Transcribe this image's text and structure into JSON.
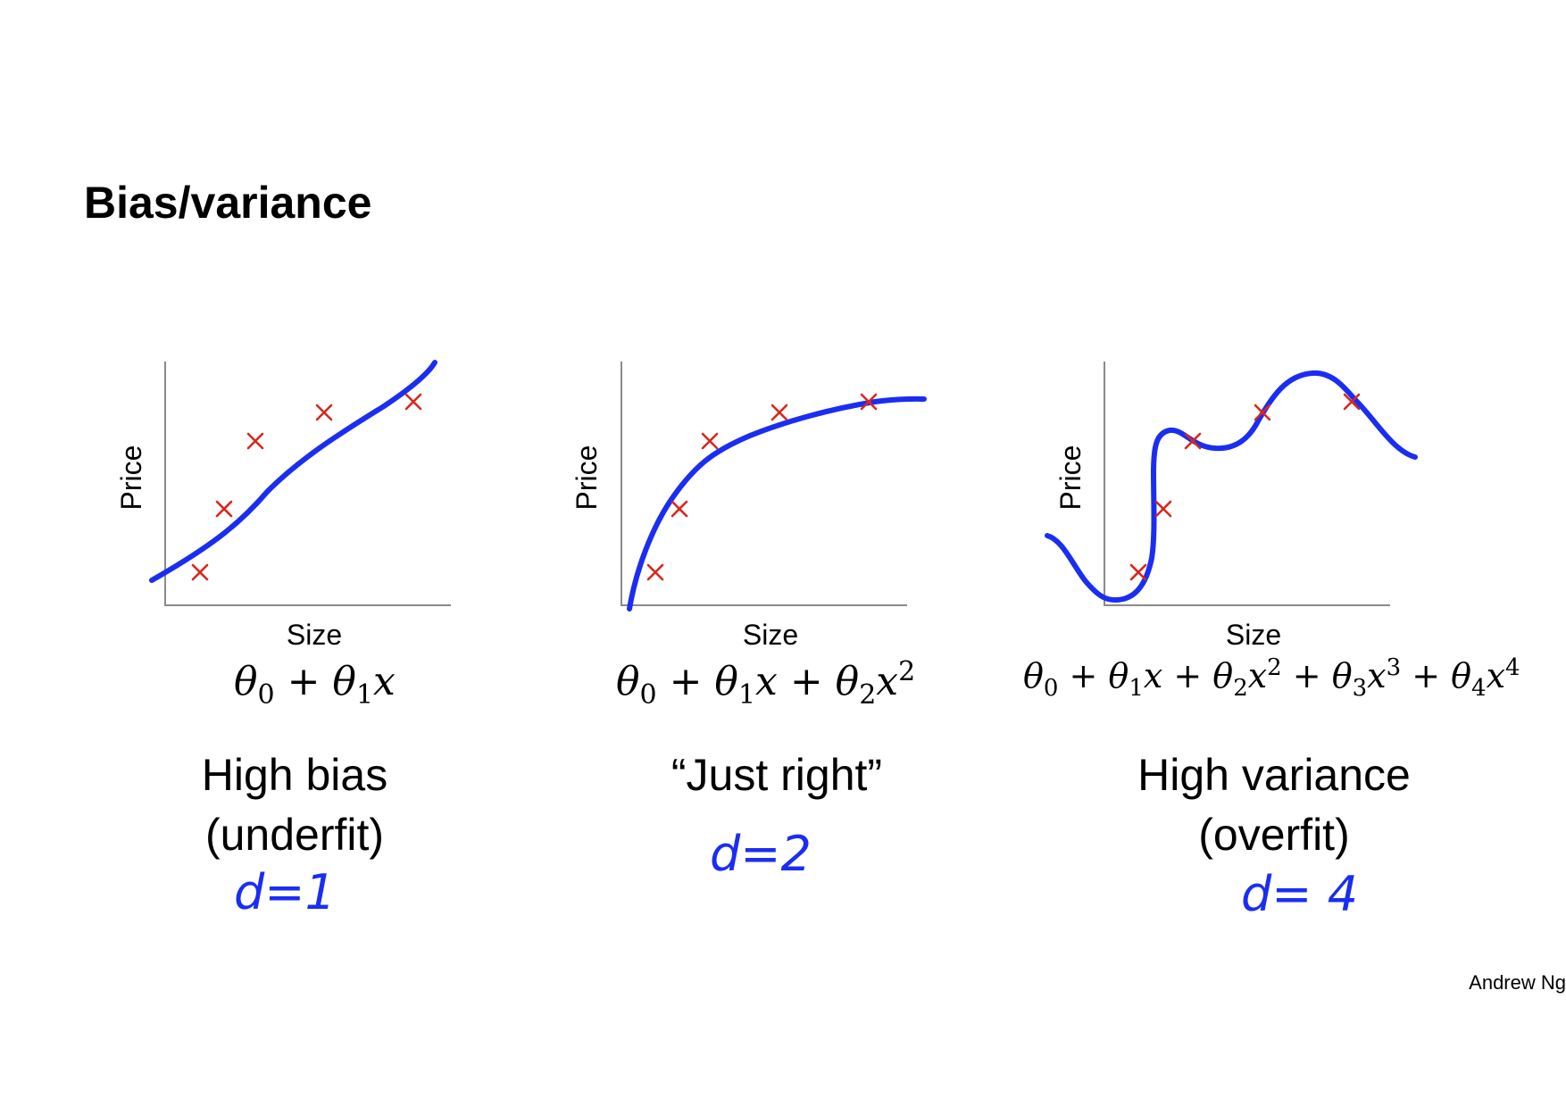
{
  "slide": {
    "title": "Bias/variance",
    "author": "Andrew Ng"
  },
  "panels": [
    {
      "id": "high-bias",
      "ylabel": "Price",
      "xlabel": "Size",
      "formula": "θ0 + θ1x",
      "caption_line1": "High bias",
      "caption_line2": "(underfit)",
      "handwritten": "d=1"
    },
    {
      "id": "just-right",
      "ylabel": "Price",
      "xlabel": "Size",
      "formula": "θ0 + θ1x + θ2x^2",
      "caption_line1": "“Just right”",
      "caption_line2": "",
      "handwritten": "d=2"
    },
    {
      "id": "high-variance",
      "ylabel": "Price",
      "xlabel": "Size",
      "formula": "θ0 + θ1x + θ2x^2 + θ3x^3 + θ4x^4",
      "caption_line1": "High variance",
      "caption_line2": "(overfit)",
      "handwritten": "d= 4"
    }
  ],
  "colors": {
    "curve": "#1a2ef2",
    "points": "#d9261c",
    "axes": "#8a8a8a"
  },
  "chart_data": [
    {
      "type": "scatter",
      "title": "",
      "xlabel": "Size",
      "ylabel": "Price",
      "points": [
        [
          0.12,
          0.14
        ],
        [
          0.21,
          0.4
        ],
        [
          0.32,
          0.67
        ],
        [
          0.56,
          0.79
        ],
        [
          0.87,
          0.83
        ]
      ],
      "fit": "linear",
      "legend": "none"
    },
    {
      "type": "scatter",
      "title": "",
      "xlabel": "Size",
      "ylabel": "Price",
      "points": [
        [
          0.12,
          0.14
        ],
        [
          0.21,
          0.4
        ],
        [
          0.32,
          0.67
        ],
        [
          0.56,
          0.79
        ],
        [
          0.87,
          0.83
        ]
      ],
      "fit": "quadratic",
      "legend": "none"
    },
    {
      "type": "scatter",
      "title": "",
      "xlabel": "Size",
      "ylabel": "Price",
      "points": [
        [
          0.12,
          0.14
        ],
        [
          0.21,
          0.4
        ],
        [
          0.32,
          0.67
        ],
        [
          0.56,
          0.79
        ],
        [
          0.87,
          0.83
        ]
      ],
      "fit": "degree-4 polynomial",
      "legend": "none"
    }
  ]
}
